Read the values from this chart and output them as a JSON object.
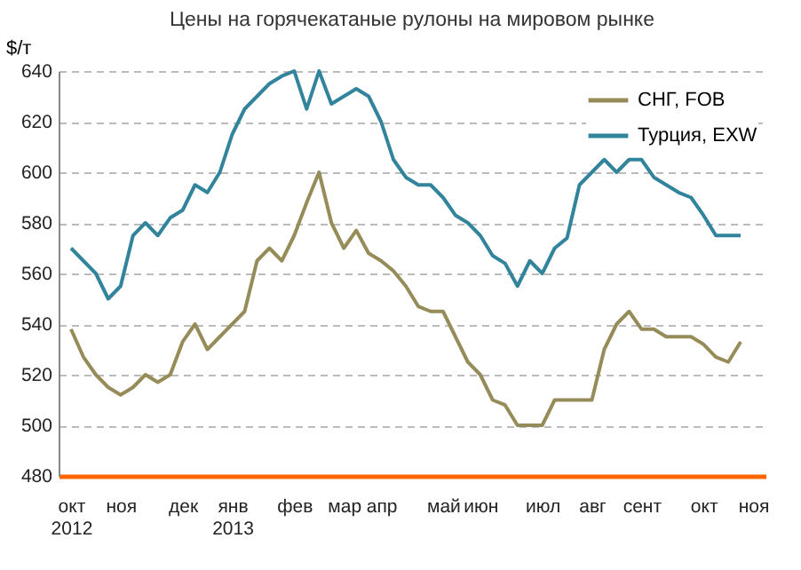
{
  "chart_data": {
    "type": "line",
    "title": "Цены на горячекатаные рулоны на мировом рынке",
    "ylabel": "$/т",
    "categories": [
      "окт\n2012",
      null,
      null,
      null,
      "ноя",
      null,
      null,
      null,
      null,
      "дек",
      null,
      null,
      null,
      "янв\n2013",
      null,
      null,
      null,
      null,
      "фев",
      null,
      null,
      null,
      "мар",
      null,
      null,
      "апр",
      null,
      null,
      null,
      null,
      "май",
      null,
      null,
      "июн",
      null,
      null,
      null,
      null,
      "июл",
      null,
      null,
      null,
      "авг",
      null,
      null,
      null,
      "сент",
      null,
      null,
      null,
      null,
      "окт",
      null,
      null,
      null,
      "ноя"
    ],
    "series": [
      {
        "name": "СНГ, FOB",
        "color": "#968c5a",
        "values": [
          538,
          527,
          520,
          515,
          512,
          515,
          520,
          517,
          520,
          533,
          540,
          530,
          535,
          540,
          545,
          565,
          570,
          565,
          575,
          588,
          600,
          580,
          570,
          577,
          568,
          565,
          561,
          555,
          547,
          545,
          545,
          535,
          525,
          520,
          510,
          508,
          500,
          500,
          500,
          510,
          510,
          510,
          510,
          530,
          540,
          545,
          538,
          538,
          535,
          535,
          535,
          532,
          527,
          525,
          533,
          null
        ]
      },
      {
        "name": "Турция, EXW",
        "color": "#31849b",
        "values": [
          570,
          565,
          560,
          550,
          555,
          575,
          580,
          575,
          582,
          585,
          595,
          592,
          600,
          615,
          625,
          630,
          635,
          638,
          640,
          625,
          640,
          627,
          630,
          633,
          630,
          620,
          605,
          598,
          595,
          595,
          590,
          583,
          580,
          575,
          567,
          564,
          555,
          565,
          560,
          570,
          574,
          595,
          600,
          605,
          600,
          605,
          605,
          598,
          595,
          592,
          590,
          583,
          575,
          575,
          575,
          null
        ]
      }
    ],
    "ylim": [
      480,
      640
    ],
    "yticks": [
      480,
      500,
      520,
      540,
      560,
      580,
      600,
      620,
      640
    ],
    "grid": "y",
    "legend": "top right"
  }
}
